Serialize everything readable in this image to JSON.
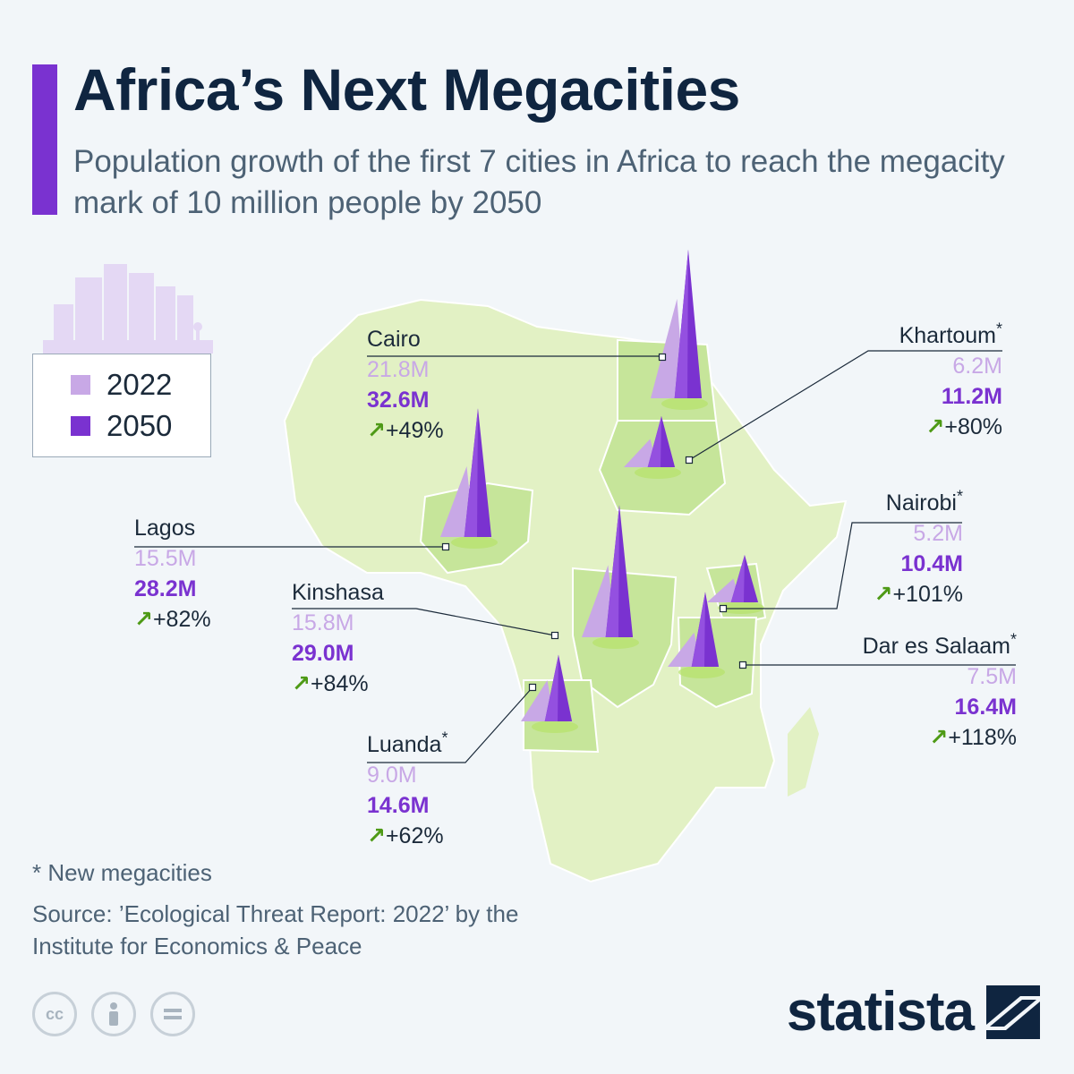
{
  "header": {
    "title": "Africa’s Next Megacities",
    "subtitle": "Population growth of the first 7 cities in Africa to reach the megacity mark of 10 million people by 2050"
  },
  "legend": {
    "items": [
      {
        "label": "2022",
        "color": "#c8a8e6"
      },
      {
        "label": "2050",
        "color": "#7a32d0"
      }
    ]
  },
  "chart_data": {
    "type": "bar",
    "title": "Africa’s Next Megacities",
    "unit": "M",
    "categories": [
      "Cairo",
      "Khartoum",
      "Lagos",
      "Kinshasa",
      "Nairobi",
      "Dar es Salaam",
      "Luanda"
    ],
    "series": [
      {
        "name": "2022",
        "values": [
          21.8,
          6.2,
          15.5,
          15.8,
          5.2,
          7.5,
          9.0
        ]
      },
      {
        "name": "2050",
        "values": [
          32.6,
          11.2,
          28.2,
          29.0,
          10.4,
          16.4,
          14.6
        ]
      }
    ],
    "cities": [
      {
        "name": "Cairo",
        "new": false,
        "v2022": "21.8M",
        "v2050": "32.6M",
        "change": "+49%"
      },
      {
        "name": "Khartoum",
        "new": true,
        "v2022": "6.2M",
        "v2050": "11.2M",
        "change": "+80%"
      },
      {
        "name": "Lagos",
        "new": false,
        "v2022": "15.5M",
        "v2050": "28.2M",
        "change": "+82%"
      },
      {
        "name": "Kinshasa",
        "new": false,
        "v2022": "15.8M",
        "v2050": "29.0M",
        "change": "+84%"
      },
      {
        "name": "Nairobi",
        "new": true,
        "v2022": "5.2M",
        "v2050": "10.4M",
        "change": "+101%"
      },
      {
        "name": "Dar es Salaam",
        "new": true,
        "v2022": "7.5M",
        "v2050": "16.4M",
        "change": "+118%"
      },
      {
        "name": "Luanda",
        "new": true,
        "v2022": "9.0M",
        "v2050": "14.6M",
        "change": "+62%"
      }
    ]
  },
  "markers": {
    "new_symbol": "*",
    "growth_arrow": "↗"
  },
  "footer": {
    "footnote": "* New megacities",
    "source": "Source: ’Ecological Threat Report: 2022’ by the Institute for Economics & Peace",
    "brand": "statista"
  },
  "colors": {
    "accent": "#7a32d0",
    "light": "#c8a8e6",
    "map_land": "#e2f1c4",
    "map_highlight": "#c6e59a",
    "growth": "#4e9a16",
    "title": "#0f2540"
  }
}
